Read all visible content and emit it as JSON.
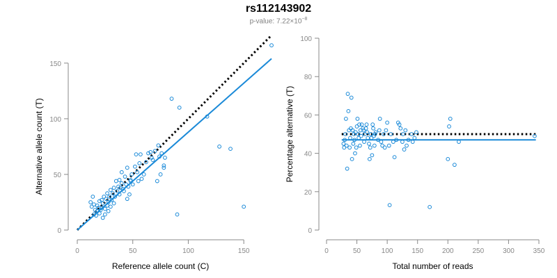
{
  "title": "rs112143902",
  "subtitle": {
    "prefix": "p-value: 7.22×10",
    "exponent": "−8"
  },
  "colors": {
    "points": "#1b8ad8",
    "fit": "#1b8ad8",
    "reference": "#000000",
    "axis": "#888888"
  },
  "chart_data": [
    {
      "type": "scatter",
      "xlabel": "Reference allele count (C)",
      "ylabel": "Alternative allele count (T)",
      "xlim": [
        0,
        175
      ],
      "ylim": [
        0,
        168
      ],
      "xticks": [
        0,
        50,
        100,
        150
      ],
      "yticks": [
        0,
        50,
        100,
        150
      ],
      "grid": false,
      "points": [
        [
          12,
          25
        ],
        [
          13,
          21
        ],
        [
          14,
          30
        ],
        [
          15,
          23
        ],
        [
          15,
          14
        ],
        [
          16,
          18
        ],
        [
          17,
          13
        ],
        [
          18,
          17
        ],
        [
          18,
          22
        ],
        [
          19,
          20
        ],
        [
          20,
          15
        ],
        [
          20,
          26
        ],
        [
          21,
          18
        ],
        [
          22,
          20
        ],
        [
          22,
          27
        ],
        [
          23,
          11
        ],
        [
          23,
          24
        ],
        [
          24,
          30
        ],
        [
          25,
          19
        ],
        [
          25,
          14
        ],
        [
          26,
          28
        ],
        [
          27,
          22
        ],
        [
          27,
          33
        ],
        [
          28,
          25
        ],
        [
          28,
          17
        ],
        [
          29,
          30
        ],
        [
          30,
          21
        ],
        [
          30,
          36
        ],
        [
          31,
          27
        ],
        [
          32,
          33
        ],
        [
          33,
          38
        ],
        [
          33,
          24
        ],
        [
          34,
          30
        ],
        [
          35,
          44
        ],
        [
          36,
          35
        ],
        [
          37,
          39
        ],
        [
          38,
          45
        ],
        [
          38,
          32
        ],
        [
          39,
          38
        ],
        [
          40,
          42
        ],
        [
          40,
          52
        ],
        [
          41,
          37
        ],
        [
          42,
          35
        ],
        [
          43,
          48
        ],
        [
          44,
          41
        ],
        [
          45,
          56
        ],
        [
          45,
          28
        ],
        [
          46,
          39
        ],
        [
          47,
          32
        ],
        [
          48,
          44
        ],
        [
          48,
          45
        ],
        [
          49,
          50
        ],
        [
          50,
          41
        ],
        [
          52,
          57
        ],
        [
          53,
          68
        ],
        [
          54,
          52
        ],
        [
          55,
          44
        ],
        [
          56,
          60
        ],
        [
          57,
          68
        ],
        [
          58,
          46
        ],
        [
          60,
          50
        ],
        [
          62,
          61
        ],
        [
          64,
          69
        ],
        [
          66,
          70
        ],
        [
          67,
          65
        ],
        [
          68,
          63
        ],
        [
          70,
          71
        ],
        [
          72,
          44
        ],
        [
          73,
          76
        ],
        [
          74,
          66
        ],
        [
          75,
          50
        ],
        [
          76,
          69
        ],
        [
          78,
          58
        ],
        [
          78,
          56
        ],
        [
          79,
          65
        ],
        [
          85,
          118
        ],
        [
          90,
          14
        ],
        [
          92,
          110
        ],
        [
          117,
          102
        ],
        [
          128,
          75
        ],
        [
          138,
          73
        ],
        [
          150,
          21
        ],
        [
          175,
          166
        ]
      ],
      "reference_line": {
        "slope": 1.0,
        "intercept": 0,
        "x_range": [
          0,
          175
        ]
      },
      "fit_line": {
        "slope": 0.88,
        "intercept": 0,
        "x_range": [
          0,
          175
        ]
      }
    },
    {
      "type": "scatter",
      "xlabel": "Total number of reads",
      "ylabel": "Percentage alternative (T)",
      "xlim": [
        0,
        350
      ],
      "ylim": [
        0,
        100
      ],
      "xticks": [
        0,
        50,
        100,
        150,
        200,
        250,
        300,
        350
      ],
      "yticks": [
        0,
        20,
        40,
        60,
        80,
        100
      ],
      "grid": false,
      "points": [
        [
          28,
          45
        ],
        [
          29,
          43
        ],
        [
          30,
          47
        ],
        [
          31,
          50
        ],
        [
          32,
          58
        ],
        [
          33,
          44
        ],
        [
          34,
          32
        ],
        [
          35,
          71
        ],
        [
          36,
          62
        ],
        [
          37,
          52
        ],
        [
          38,
          43
        ],
        [
          39,
          48
        ],
        [
          40,
          53
        ],
        [
          41,
          69
        ],
        [
          42,
          37
        ],
        [
          43,
          52
        ],
        [
          44,
          45
        ],
        [
          45,
          50
        ],
        [
          46,
          47
        ],
        [
          47,
          40
        ],
        [
          48,
          51
        ],
        [
          49,
          43
        ],
        [
          50,
          54
        ],
        [
          51,
          58
        ],
        [
          52,
          50
        ],
        [
          53,
          48
        ],
        [
          54,
          55
        ],
        [
          55,
          44
        ],
        [
          56,
          52
        ],
        [
          57,
          49
        ],
        [
          58,
          55
        ],
        [
          60,
          53
        ],
        [
          61,
          52
        ],
        [
          62,
          46
        ],
        [
          63,
          50
        ],
        [
          65,
          53
        ],
        [
          66,
          55
        ],
        [
          67,
          51
        ],
        [
          68,
          48
        ],
        [
          70,
          45
        ],
        [
          71,
          37
        ],
        [
          72,
          43
        ],
        [
          73,
          50
        ],
        [
          74,
          48
        ],
        [
          75,
          39
        ],
        [
          76,
          55
        ],
        [
          77,
          53
        ],
        [
          78,
          49
        ],
        [
          79,
          44
        ],
        [
          80,
          50
        ],
        [
          81,
          51
        ],
        [
          85,
          47
        ],
        [
          87,
          52
        ],
        [
          88,
          58
        ],
        [
          90,
          46
        ],
        [
          92,
          44
        ],
        [
          94,
          50
        ],
        [
          96,
          43
        ],
        [
          98,
          52
        ],
        [
          100,
          56
        ],
        [
          103,
          44
        ],
        [
          104,
          13
        ],
        [
          106,
          50
        ],
        [
          110,
          46
        ],
        [
          112,
          38
        ],
        [
          115,
          47
        ],
        [
          118,
          56
        ],
        [
          120,
          55
        ],
        [
          122,
          53
        ],
        [
          125,
          46
        ],
        [
          126,
          50
        ],
        [
          128,
          42
        ],
        [
          130,
          52
        ],
        [
          132,
          44
        ],
        [
          135,
          47
        ],
        [
          140,
          50
        ],
        [
          142,
          46
        ],
        [
          145,
          48
        ],
        [
          148,
          51
        ],
        [
          170,
          12
        ],
        [
          200,
          37
        ],
        [
          202,
          54
        ],
        [
          204,
          58
        ],
        [
          211,
          34
        ],
        [
          218,
          46
        ],
        [
          343,
          49
        ]
      ],
      "reference_line": {
        "y": 50,
        "x_range": [
          25,
          345
        ]
      },
      "fit_line": {
        "y": 47,
        "x_range": [
          25,
          345
        ]
      }
    }
  ]
}
